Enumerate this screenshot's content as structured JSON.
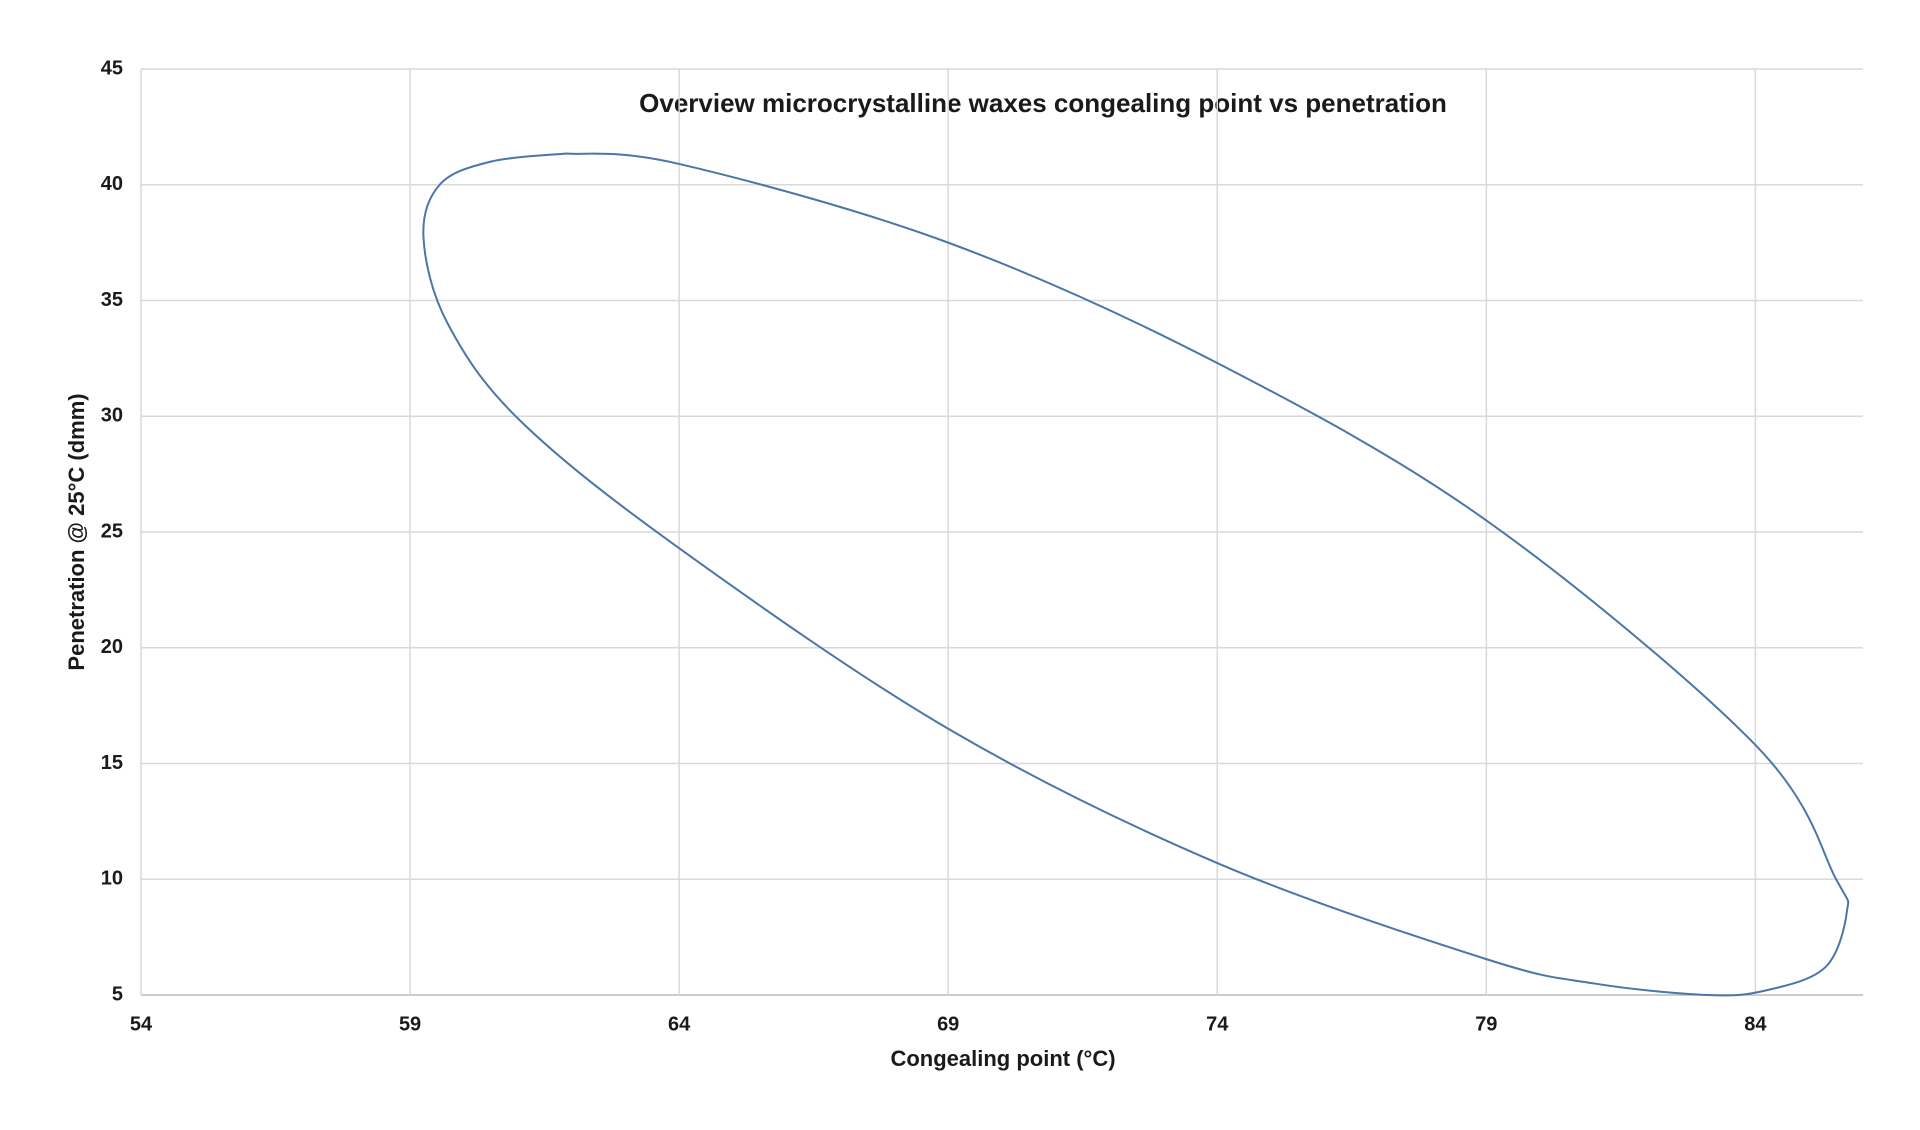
{
  "chart_data": {
    "type": "line",
    "title": "Overview microcrystalline waxes congealing point vs penetration",
    "xlabel": "Congealing point (°C)",
    "ylabel": "Penetration @ 25°C (dmm)",
    "x": [
      61.9,
      64,
      69,
      74,
      79,
      84,
      85.5,
      85.7,
      85.3,
      84.2,
      83.1,
      81,
      79,
      74,
      69,
      64,
      61.05,
      59.7,
      59.25,
      59.55,
      60.5,
      61.9
    ],
    "values": [
      41.35,
      40.9,
      37.5,
      32.3,
      25.5,
      15.8,
      10,
      8.6,
      6.2,
      5.2,
      5.0,
      5.5,
      6.55,
      10.7,
      16.5,
      24.3,
      29.8,
      34,
      37.7,
      40,
      41,
      41.35
    ],
    "color": "#4a76a8",
    "xlim": [
      54,
      86
    ],
    "xticks": [
      54,
      59,
      64,
      69,
      74,
      79,
      84
    ],
    "ylim": [
      5,
      45
    ],
    "yticks": [
      5,
      10,
      15,
      20,
      25,
      30,
      35,
      40,
      45
    ],
    "grid": true
  }
}
